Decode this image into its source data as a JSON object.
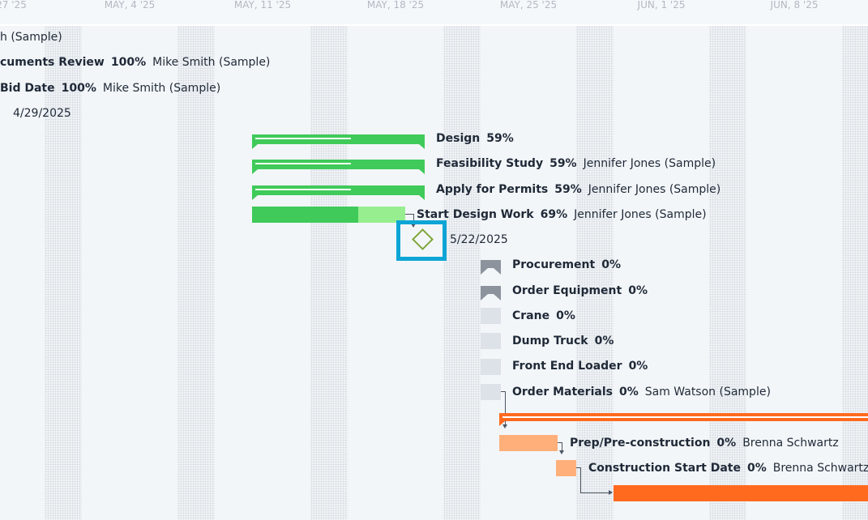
{
  "timeline": {
    "headers": [
      "27 '25",
      "MAY, 4 '25",
      "MAY, 11 '25",
      "MAY, 18 '25",
      "MAY, 25 '25",
      "JUN, 1 '25",
      "JUN, 8 '25"
    ]
  },
  "tasks": [
    {
      "name": "",
      "percent": "",
      "assignee": "h (Sample)"
    },
    {
      "name": "cuments Review",
      "percent": "100%",
      "assignee": "Mike Smith (Sample)"
    },
    {
      "name": "Bid Date",
      "percent": "100%",
      "assignee": "Mike Smith (Sample)"
    },
    {
      "name": "",
      "percent": "",
      "assignee": "4/29/2025"
    },
    {
      "name": "Design",
      "percent": "59%",
      "assignee": ""
    },
    {
      "name": "Feasibility Study",
      "percent": "59%",
      "assignee": "Jennifer Jones (Sample)"
    },
    {
      "name": "Apply for Permits",
      "percent": "59%",
      "assignee": "Jennifer Jones (Sample)"
    },
    {
      "name": "Start Design Work",
      "percent": "69%",
      "assignee": "Jennifer Jones (Sample)"
    },
    {
      "name": "",
      "percent": "",
      "assignee": "5/22/2025"
    },
    {
      "name": "Procurement",
      "percent": "0%",
      "assignee": ""
    },
    {
      "name": "Order Equipment",
      "percent": "0%",
      "assignee": ""
    },
    {
      "name": "Crane",
      "percent": "0%",
      "assignee": ""
    },
    {
      "name": "Dump Truck",
      "percent": "0%",
      "assignee": ""
    },
    {
      "name": "Front End Loader",
      "percent": "0%",
      "assignee": ""
    },
    {
      "name": "Order Materials",
      "percent": "0%",
      "assignee": "Sam Watson (Sample)"
    },
    {
      "name": "Prep/Pre-construction",
      "percent": "0%",
      "assignee": "Brenna Schwartz"
    },
    {
      "name": "Construction Start Date",
      "percent": "0%",
      "assignee": "Brenna Schwartz"
    }
  ],
  "colors": {
    "green": "#3fca5a",
    "green_light": "#97ee8f",
    "gray_summary": "#8c939c",
    "gray_task": "#dde1e8",
    "orange": "#ff6a1f",
    "orange_light": "#ffb07a",
    "highlight": "#0ea5d6",
    "milestone": "#7ea63a"
  },
  "icons": {
    "milestone": "diamond-icon"
  }
}
